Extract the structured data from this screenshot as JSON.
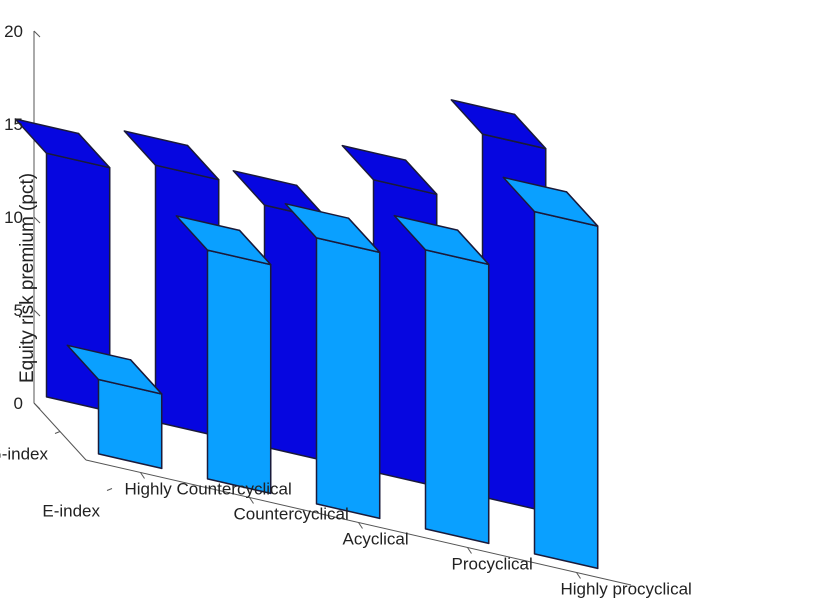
{
  "chart_data": {
    "type": "bar",
    "style": "3d-bar",
    "ylabel": "Equity risk premium (pct)",
    "categories": [
      "Highly Countercyclical",
      "Countercyclical",
      "Acyclical",
      "Procyclical",
      "Highly procyclical"
    ],
    "series": [
      {
        "name": "G-index",
        "values": [
          13.1,
          13.8,
          13.0,
          15.7,
          19.5
        ]
      },
      {
        "name": "E-index",
        "values": [
          4.0,
          12.3,
          14.3,
          15.0,
          18.4
        ]
      }
    ],
    "zlim": [
      0,
      20
    ],
    "zticks": [
      0,
      5,
      10,
      15,
      20
    ],
    "grid": false,
    "colors": {
      "G-index": "#0606e0",
      "E-index": "#0aa0ff"
    }
  }
}
